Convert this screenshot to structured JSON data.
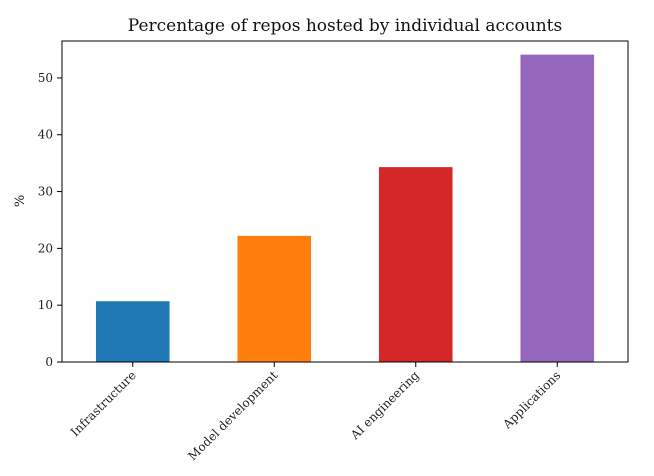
{
  "chart_data": {
    "type": "bar",
    "title": "Percentage of repos hosted by individual accounts",
    "xlabel": "",
    "ylabel": "%",
    "categories": [
      "Infrastructure",
      "Model development",
      "AI engineering",
      "Applications"
    ],
    "values": [
      10.7,
      22.2,
      34.3,
      54.1
    ],
    "colors": [
      "#1f77b4",
      "#ff7f0e",
      "#d62728",
      "#9467bd"
    ],
    "ylim": [
      0,
      56.5
    ],
    "yticks": [
      0,
      10,
      20,
      30,
      40,
      50
    ],
    "ytick_labels": [
      "0",
      "10",
      "20",
      "30",
      "40",
      "50"
    ],
    "grid": false,
    "legend": "none"
  }
}
